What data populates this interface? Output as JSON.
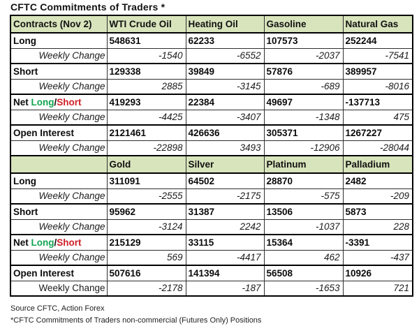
{
  "title": "CFTC Commitments of Traders *",
  "colors": {
    "header_bg": "#d8e4bc",
    "positive_green": "#12a452",
    "negative_red": "#cf2026"
  },
  "net_label": {
    "prefix": "Net ",
    "long": "Long",
    "sep": "/",
    "short": "Short"
  },
  "sections": [
    {
      "columns": [
        "Contracts (Nov 2)",
        "WTI Crude Oil",
        "Heating Oil",
        "Gasoline",
        "Natural Gas"
      ],
      "rows": [
        {
          "label": "Long",
          "values": [
            "548631",
            "62233",
            "107573",
            "252244"
          ]
        },
        {
          "label": "Weekly Change",
          "values": [
            "-1540",
            "-6552",
            "-2037",
            "-7541"
          ]
        },
        {
          "label": "Short",
          "values": [
            "129338",
            "39849",
            "57876",
            "389957"
          ]
        },
        {
          "label": "Weekly Change",
          "values": [
            "2885",
            "-3145",
            "-689",
            "-8016"
          ]
        },
        {
          "label": "Net Long/Short",
          "values": [
            "419293",
            "22384",
            "49697",
            "-137713"
          ]
        },
        {
          "label": "Weekly Change",
          "values": [
            "-4425",
            "-3407",
            "-1348",
            "475"
          ]
        },
        {
          "label": "Open Interest",
          "values": [
            "2121461",
            "426636",
            "305371",
            "1267227"
          ]
        },
        {
          "label": "Weekly Change",
          "values": [
            "-22898",
            "3493",
            "-12906",
            "-28044"
          ]
        }
      ]
    },
    {
      "columns": [
        "",
        "Gold",
        "Silver",
        "Platinum",
        "Palladium"
      ],
      "rows": [
        {
          "label": "Long",
          "values": [
            "311091",
            "64502",
            "28870",
            "2482"
          ]
        },
        {
          "label": "Weekly Change",
          "values": [
            "-2555",
            "-2175",
            "-575",
            "-209"
          ]
        },
        {
          "label": "Short",
          "values": [
            "95962",
            "31387",
            "13506",
            "5873"
          ]
        },
        {
          "label": "Weekly Change",
          "values": [
            "-3124",
            "2242",
            "-1037",
            "228"
          ]
        },
        {
          "label": "Net Long/Short",
          "values": [
            "215129",
            "33115",
            "15364",
            "-3391"
          ]
        },
        {
          "label": "Weekly Change",
          "values": [
            "569",
            "-4417",
            "462",
            "-437"
          ]
        },
        {
          "label": "Open Interest",
          "values": [
            "507616",
            "141394",
            "56508",
            "10926"
          ]
        },
        {
          "label": "Weekly Change",
          "values": [
            "-2178",
            "-187",
            "-1653",
            "721"
          ]
        }
      ]
    }
  ],
  "footer": {
    "source": "Source CFTC, Action Forex",
    "note": "*CFTC Commitments of Traders non-commercial (Futures Only) Positions"
  }
}
